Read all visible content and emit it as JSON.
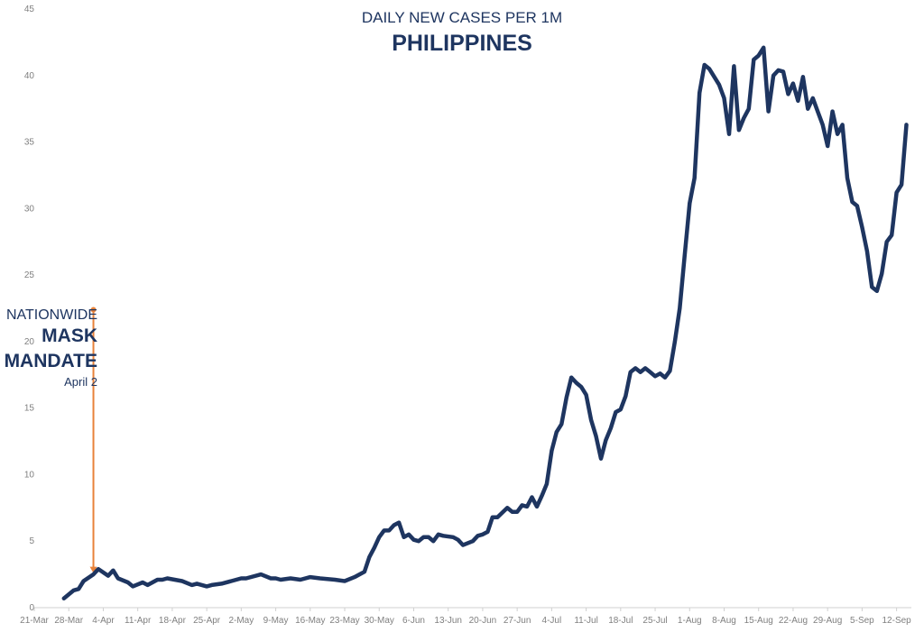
{
  "chart_data": {
    "type": "line",
    "title": "DAILY NEW CASES PER 1M",
    "subtitle": "PHILIPPINES",
    "xlabel": "",
    "ylabel": "",
    "ylim": [
      0,
      45
    ],
    "y_ticks": [
      0,
      5,
      10,
      15,
      20,
      25,
      30,
      35,
      40,
      45
    ],
    "x_range": [
      "2021-03-21",
      "2021-09-15"
    ],
    "x_tick_labels": [
      "21-Mar",
      "28-Mar",
      "4-Apr",
      "11-Apr",
      "18-Apr",
      "25-Apr",
      "2-May",
      "9-May",
      "16-May",
      "23-May",
      "30-May",
      "6-Jun",
      "13-Jun",
      "20-Jun",
      "27-Jun",
      "4-Jul",
      "11-Jul",
      "18-Jul",
      "25-Jul",
      "1-Aug",
      "8-Aug",
      "15-Aug",
      "22-Aug",
      "29-Aug",
      "5-Sep",
      "12-Sep"
    ],
    "grid": false,
    "series": [
      {
        "color": "#1e3560",
        "points": [
          [
            "2021-03-27",
            0.7
          ],
          [
            "2021-03-29",
            1.3
          ],
          [
            "2021-03-30",
            1.4
          ],
          [
            "2021-03-31",
            2.0
          ],
          [
            "2021-04-02",
            2.5
          ],
          [
            "2021-04-03",
            2.9
          ],
          [
            "2021-04-05",
            2.4
          ],
          [
            "2021-04-06",
            2.8
          ],
          [
            "2021-04-07",
            2.2
          ],
          [
            "2021-04-09",
            1.9
          ],
          [
            "2021-04-10",
            1.6
          ],
          [
            "2021-04-12",
            1.9
          ],
          [
            "2021-04-13",
            1.7
          ],
          [
            "2021-04-15",
            2.1
          ],
          [
            "2021-04-16",
            2.1
          ],
          [
            "2021-04-17",
            2.2
          ],
          [
            "2021-04-20",
            2.0
          ],
          [
            "2021-04-22",
            1.7
          ],
          [
            "2021-04-23",
            1.8
          ],
          [
            "2021-04-25",
            1.6
          ],
          [
            "2021-04-26",
            1.7
          ],
          [
            "2021-04-28",
            1.8
          ],
          [
            "2021-04-30",
            2.0
          ],
          [
            "2021-05-02",
            2.2
          ],
          [
            "2021-05-03",
            2.2
          ],
          [
            "2021-05-06",
            2.5
          ],
          [
            "2021-05-08",
            2.2
          ],
          [
            "2021-05-09",
            2.2
          ],
          [
            "2021-05-10",
            2.1
          ],
          [
            "2021-05-12",
            2.2
          ],
          [
            "2021-05-14",
            2.1
          ],
          [
            "2021-05-16",
            2.3
          ],
          [
            "2021-05-18",
            2.2
          ],
          [
            "2021-05-21",
            2.1
          ],
          [
            "2021-05-23",
            2.0
          ],
          [
            "2021-05-25",
            2.3
          ],
          [
            "2021-05-27",
            2.7
          ],
          [
            "2021-05-28",
            3.8
          ],
          [
            "2021-05-29",
            4.5
          ],
          [
            "2021-05-30",
            5.3
          ],
          [
            "2021-05-31",
            5.8
          ],
          [
            "2021-06-01",
            5.8
          ],
          [
            "2021-06-02",
            6.2
          ],
          [
            "2021-06-03",
            6.4
          ],
          [
            "2021-06-04",
            5.3
          ],
          [
            "2021-06-05",
            5.5
          ],
          [
            "2021-06-06",
            5.1
          ],
          [
            "2021-06-07",
            5.0
          ],
          [
            "2021-06-08",
            5.3
          ],
          [
            "2021-06-09",
            5.3
          ],
          [
            "2021-06-10",
            5.0
          ],
          [
            "2021-06-11",
            5.5
          ],
          [
            "2021-06-12",
            5.4
          ],
          [
            "2021-06-14",
            5.3
          ],
          [
            "2021-06-15",
            5.1
          ],
          [
            "2021-06-16",
            4.7
          ],
          [
            "2021-06-18",
            5.0
          ],
          [
            "2021-06-19",
            5.4
          ],
          [
            "2021-06-20",
            5.5
          ],
          [
            "2021-06-21",
            5.7
          ],
          [
            "2021-06-22",
            6.8
          ],
          [
            "2021-06-23",
            6.8
          ],
          [
            "2021-06-25",
            7.5
          ],
          [
            "2021-06-26",
            7.2
          ],
          [
            "2021-06-27",
            7.2
          ],
          [
            "2021-06-28",
            7.7
          ],
          [
            "2021-06-29",
            7.6
          ],
          [
            "2021-06-30",
            8.3
          ],
          [
            "2021-07-01",
            7.6
          ],
          [
            "2021-07-02",
            8.4
          ],
          [
            "2021-07-03",
            9.3
          ],
          [
            "2021-07-04",
            11.8
          ],
          [
            "2021-07-05",
            13.2
          ],
          [
            "2021-07-06",
            13.8
          ],
          [
            "2021-07-07",
            15.8
          ],
          [
            "2021-07-08",
            17.3
          ],
          [
            "2021-07-09",
            16.9
          ],
          [
            "2021-07-10",
            16.6
          ],
          [
            "2021-07-11",
            16.0
          ],
          [
            "2021-07-12",
            14.1
          ],
          [
            "2021-07-13",
            12.9
          ],
          [
            "2021-07-14",
            11.2
          ],
          [
            "2021-07-15",
            12.6
          ],
          [
            "2021-07-16",
            13.5
          ],
          [
            "2021-07-17",
            14.7
          ],
          [
            "2021-07-18",
            14.9
          ],
          [
            "2021-07-19",
            15.9
          ],
          [
            "2021-07-20",
            17.7
          ],
          [
            "2021-07-21",
            18.0
          ],
          [
            "2021-07-22",
            17.7
          ],
          [
            "2021-07-23",
            18.0
          ],
          [
            "2021-07-24",
            17.7
          ],
          [
            "2021-07-25",
            17.4
          ],
          [
            "2021-07-26",
            17.6
          ],
          [
            "2021-07-27",
            17.3
          ],
          [
            "2021-07-28",
            17.8
          ],
          [
            "2021-07-29",
            20.0
          ],
          [
            "2021-07-30",
            22.5
          ],
          [
            "2021-07-31",
            26.5
          ],
          [
            "2021-08-01",
            30.4
          ],
          [
            "2021-08-02",
            32.3
          ],
          [
            "2021-08-03",
            38.7
          ],
          [
            "2021-08-04",
            40.8
          ],
          [
            "2021-08-05",
            40.5
          ],
          [
            "2021-08-06",
            39.9
          ],
          [
            "2021-08-07",
            39.3
          ],
          [
            "2021-08-08",
            38.3
          ],
          [
            "2021-08-09",
            35.6
          ],
          [
            "2021-08-10",
            40.7
          ],
          [
            "2021-08-11",
            35.9
          ],
          [
            "2021-08-12",
            36.8
          ],
          [
            "2021-08-13",
            37.5
          ],
          [
            "2021-08-14",
            41.2
          ],
          [
            "2021-08-15",
            41.5
          ],
          [
            "2021-08-16",
            42.1
          ],
          [
            "2021-08-17",
            37.3
          ],
          [
            "2021-08-18",
            40.0
          ],
          [
            "2021-08-19",
            40.4
          ],
          [
            "2021-08-20",
            40.3
          ],
          [
            "2021-08-21",
            38.6
          ],
          [
            "2021-08-22",
            39.4
          ],
          [
            "2021-08-23",
            38.1
          ],
          [
            "2021-08-24",
            39.9
          ],
          [
            "2021-08-25",
            37.5
          ],
          [
            "2021-08-26",
            38.3
          ],
          [
            "2021-08-27",
            37.3
          ],
          [
            "2021-08-28",
            36.3
          ],
          [
            "2021-08-29",
            34.7
          ],
          [
            "2021-08-30",
            37.3
          ],
          [
            "2021-08-31",
            35.6
          ],
          [
            "2021-09-01",
            36.3
          ],
          [
            "2021-09-02",
            32.3
          ],
          [
            "2021-09-03",
            30.5
          ],
          [
            "2021-09-04",
            30.2
          ],
          [
            "2021-09-05",
            28.6
          ],
          [
            "2021-09-06",
            26.8
          ],
          [
            "2021-09-07",
            24.1
          ],
          [
            "2021-09-08",
            23.8
          ],
          [
            "2021-09-09",
            25.1
          ],
          [
            "2021-09-10",
            27.5
          ],
          [
            "2021-09-11",
            28.0
          ],
          [
            "2021-09-12",
            31.2
          ],
          [
            "2021-09-13",
            31.8
          ],
          [
            "2021-09-14",
            36.3
          ]
        ]
      }
    ],
    "annotation": {
      "line1": "NATIONWIDE",
      "line2": "MASK",
      "line3": "MANDATE",
      "line4": "April 2",
      "date": "2021-04-02",
      "y_top": 22.4,
      "y_bottom": 2.6,
      "color": "#e8823a"
    }
  }
}
